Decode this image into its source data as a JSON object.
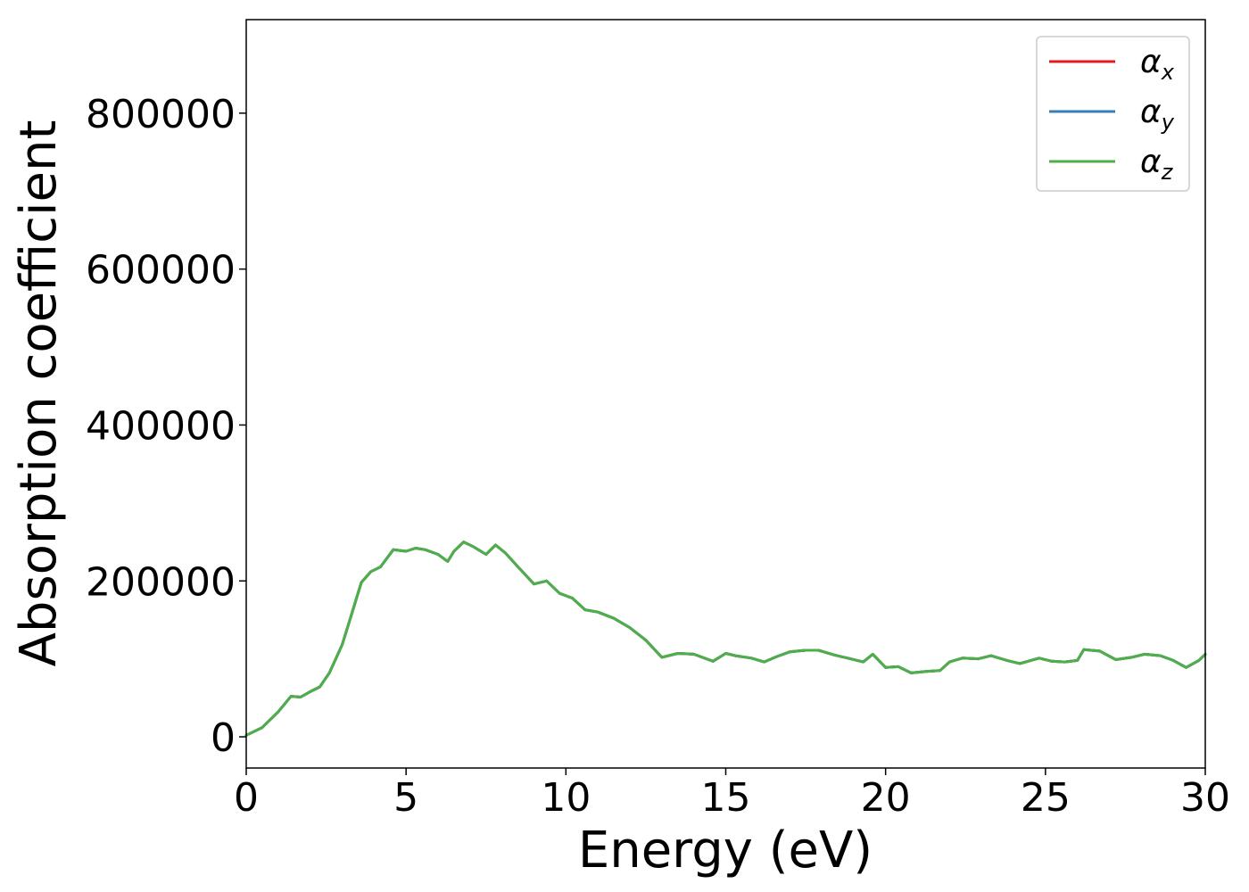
{
  "chart_data": {
    "type": "line",
    "title": "",
    "xlabel": "Energy (eV)",
    "ylabel": "Absorption coefficient",
    "xlim": [
      0,
      30
    ],
    "ylim": [
      -40000,
      920000
    ],
    "xticks": [
      0,
      5,
      10,
      15,
      20,
      25,
      30
    ],
    "yticks": [
      0,
      200000,
      400000,
      600000,
      800000
    ],
    "grid": false,
    "legend_position": "top-right",
    "x": [
      0,
      0.5,
      1,
      1.2,
      1.4,
      1.7,
      2,
      2.3,
      2.6,
      3,
      3.3,
      3.6,
      3.9,
      4.2,
      4.6,
      5,
      5.3,
      5.6,
      6,
      6.3,
      6.5,
      6.8,
      7.1,
      7.5,
      7.8,
      8.1,
      8.5,
      9,
      9.4,
      9.8,
      10.2,
      10.6,
      11,
      11.5,
      12,
      12.5,
      13,
      13.5,
      14,
      14.6,
      15,
      15.3,
      15.8,
      16.2,
      16.6,
      17,
      17.5,
      17.9,
      18.4,
      18.9,
      19.3,
      19.6,
      20,
      20.4,
      20.8,
      21.3,
      21.7,
      22,
      22.4,
      22.9,
      23.3,
      23.8,
      24.2,
      24.8,
      25.2,
      25.6,
      26,
      26.2,
      26.7,
      27.2,
      27.7,
      28.1,
      28.6,
      29,
      29.4,
      29.8,
      30
    ],
    "series": [
      {
        "name": "α",
        "subscript": "x",
        "color": "#e41a1c",
        "values": [
          2000,
          12000,
          32000,
          42000,
          52000,
          51000,
          58000,
          64000,
          82000,
          118000,
          158000,
          198000,
          212000,
          218000,
          240000,
          238000,
          242000,
          240000,
          234000,
          225000,
          238000,
          250000,
          244000,
          234000,
          246000,
          236000,
          218000,
          196000,
          200000,
          184000,
          178000,
          163000,
          160000,
          152000,
          140000,
          124000,
          102000,
          107000,
          106000,
          97000,
          107000,
          104000,
          101000,
          96000,
          103000,
          109000,
          111000,
          111000,
          105000,
          100000,
          96000,
          106000,
          89000,
          90000,
          82000,
          84000,
          85000,
          96000,
          101000,
          100000,
          104000,
          98000,
          94000,
          101000,
          97000,
          96000,
          98000,
          112000,
          110000,
          99000,
          102000,
          106000,
          104000,
          98000,
          89000,
          98000,
          106000
        ]
      },
      {
        "name": "α",
        "subscript": "y",
        "color": "#377eb8",
        "values": [
          2000,
          12000,
          32000,
          42000,
          52000,
          51000,
          58000,
          64000,
          82000,
          118000,
          158000,
          198000,
          212000,
          218000,
          240000,
          238000,
          242000,
          240000,
          234000,
          225000,
          238000,
          250000,
          244000,
          234000,
          246000,
          236000,
          218000,
          196000,
          200000,
          184000,
          178000,
          163000,
          160000,
          152000,
          140000,
          124000,
          102000,
          107000,
          106000,
          97000,
          107000,
          104000,
          101000,
          96000,
          103000,
          109000,
          111000,
          111000,
          105000,
          100000,
          96000,
          106000,
          89000,
          90000,
          82000,
          84000,
          85000,
          96000,
          101000,
          100000,
          104000,
          98000,
          94000,
          101000,
          97000,
          96000,
          98000,
          112000,
          110000,
          99000,
          102000,
          106000,
          104000,
          98000,
          89000,
          98000,
          106000
        ]
      },
      {
        "name": "α",
        "subscript": "z",
        "color": "#4daf4a",
        "values": [
          2000,
          12000,
          32000,
          42000,
          52000,
          51000,
          58000,
          64000,
          82000,
          118000,
          158000,
          198000,
          212000,
          218000,
          240000,
          238000,
          242000,
          240000,
          234000,
          225000,
          238000,
          250000,
          244000,
          234000,
          246000,
          236000,
          218000,
          196000,
          200000,
          184000,
          178000,
          163000,
          160000,
          152000,
          140000,
          124000,
          102000,
          107000,
          106000,
          97000,
          107000,
          104000,
          101000,
          96000,
          103000,
          109000,
          111000,
          111000,
          105000,
          100000,
          96000,
          106000,
          89000,
          90000,
          82000,
          84000,
          85000,
          96000,
          101000,
          100000,
          104000,
          98000,
          94000,
          101000,
          97000,
          96000,
          98000,
          112000,
          110000,
          99000,
          102000,
          106000,
          104000,
          98000,
          89000,
          98000,
          106000
        ]
      }
    ]
  }
}
